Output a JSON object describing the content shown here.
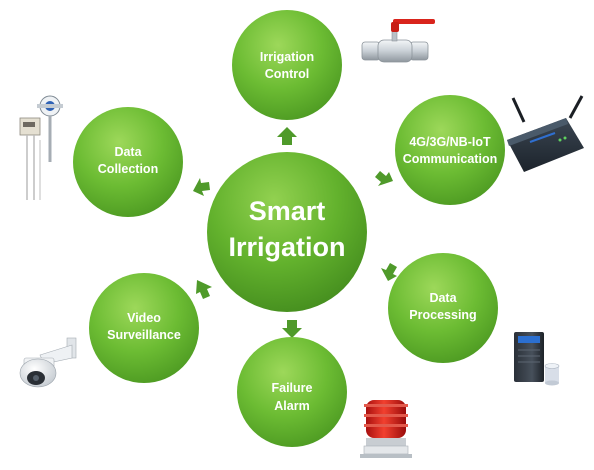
{
  "center": {
    "line1": "Smart",
    "line2": "Irrigation"
  },
  "nodes": [
    {
      "key": "irrigation-control",
      "line1": "Irrigation",
      "line2": "Control",
      "icon": "valve-icon"
    },
    {
      "key": "communication",
      "line1": "4G/3G/NB-IoT",
      "line2": "Communication",
      "icon": "router-icon"
    },
    {
      "key": "data-processing",
      "line1": "Data",
      "line2": "Processing",
      "icon": "server-icon"
    },
    {
      "key": "failure-alarm",
      "line1": "Failure",
      "line2": "Alarm",
      "icon": "alarm-beacon-icon"
    },
    {
      "key": "video-surveillance",
      "line1": "Video",
      "line2": "Surveillance",
      "icon": "dome-camera-icon"
    },
    {
      "key": "data-collection",
      "line1": "Data",
      "line2": "Collection",
      "icon": "sensor-icon"
    }
  ],
  "colors": {
    "node_fill": "#5cae2a",
    "node_highlight": "#9dd85a",
    "arrow": "#4f9a2a",
    "text": "#ffffff"
  }
}
